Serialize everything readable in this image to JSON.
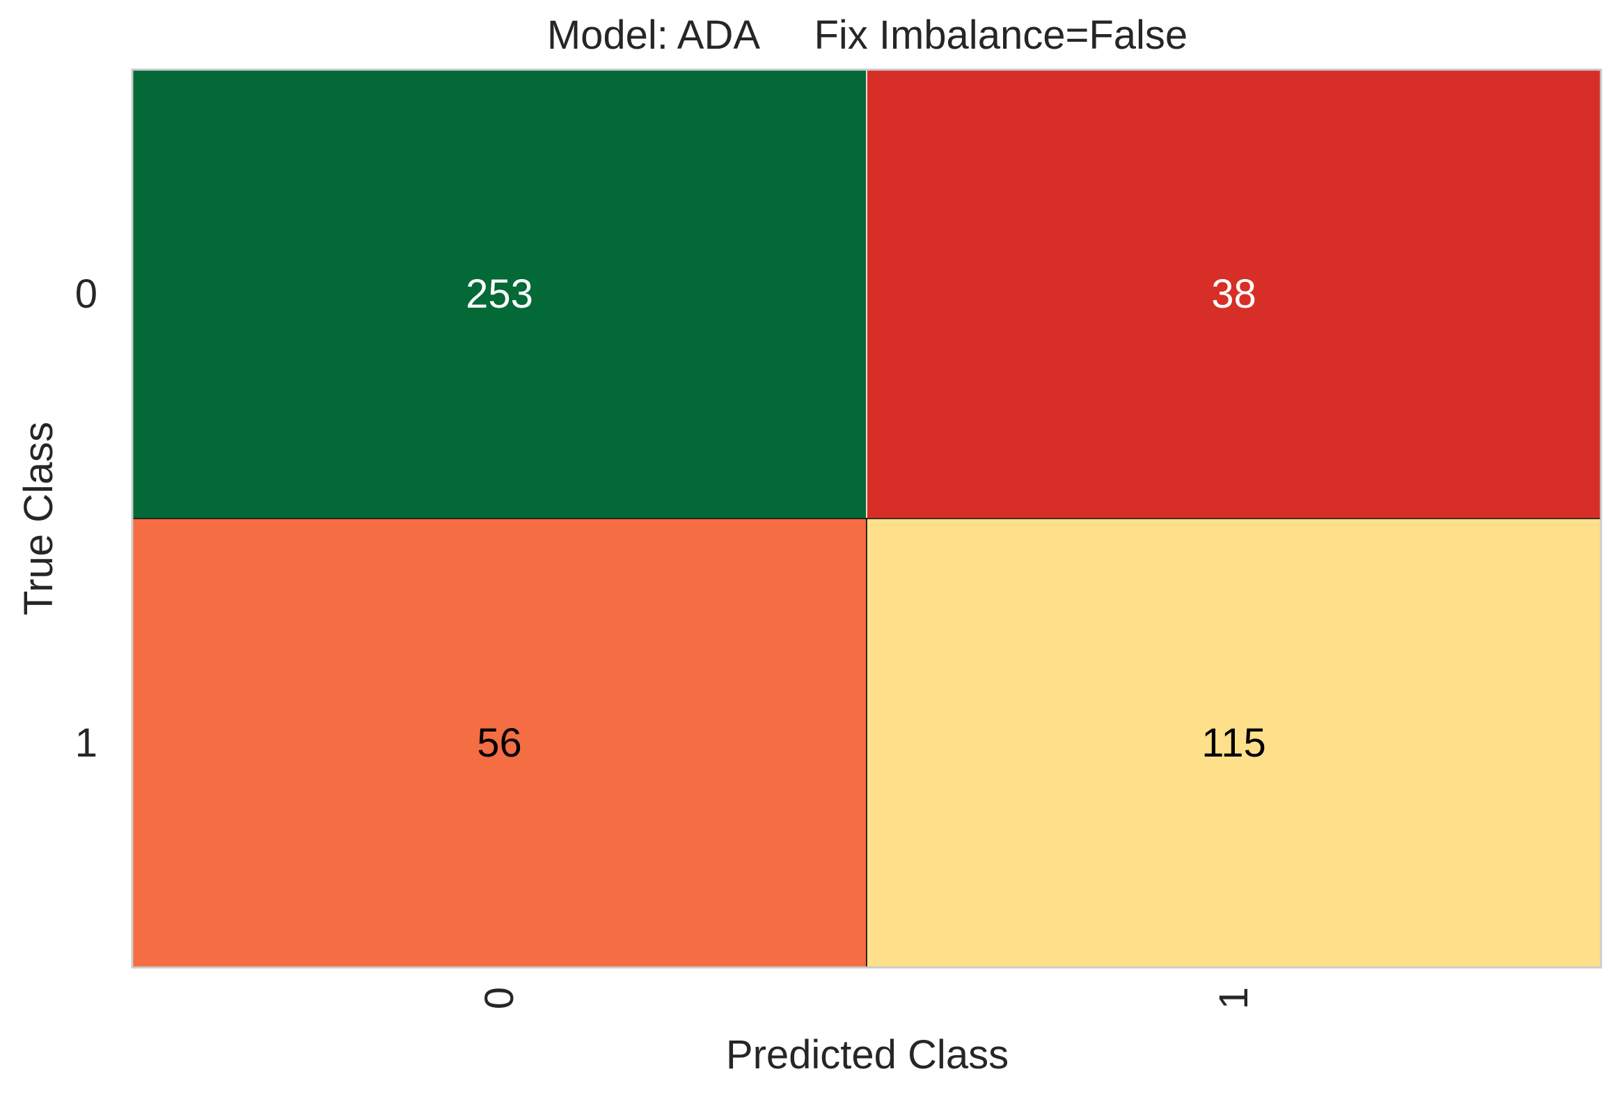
{
  "chart_data": {
    "type": "heatmap",
    "title": "Model: ADA     Fix Imbalance=False",
    "xlabel": "Predicted Class",
    "ylabel": "True Class",
    "x_categories": [
      "0",
      "1"
    ],
    "y_categories": [
      "0",
      "1"
    ],
    "cells": [
      {
        "true_class": "0",
        "predicted_class": "0",
        "value": 253,
        "color": "#026937",
        "text_color": "#ffffff"
      },
      {
        "true_class": "0",
        "predicted_class": "1",
        "value": 38,
        "color": "#d72f27",
        "text_color": "#ffffff"
      },
      {
        "true_class": "1",
        "predicted_class": "0",
        "value": 56,
        "color": "#f46d43",
        "text_color": "#000000"
      },
      {
        "true_class": "1",
        "predicted_class": "1",
        "value": 115,
        "color": "#fee08b",
        "text_color": "#000000"
      }
    ],
    "grid": false,
    "colormap": "RdYlGn"
  }
}
